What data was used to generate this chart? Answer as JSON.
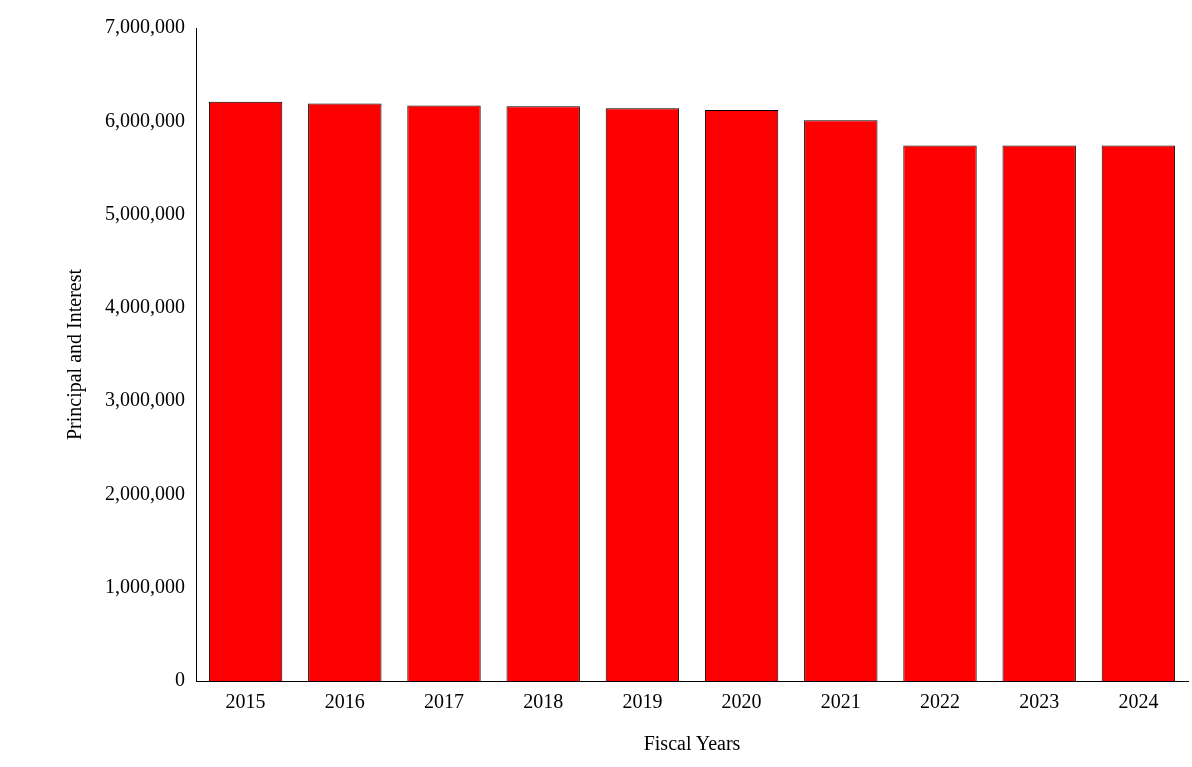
{
  "chart_data": {
    "type": "bar",
    "xlabel": "Fiscal Years",
    "ylabel": "Principal and Interest",
    "categories": [
      "2015",
      "2016",
      "2017",
      "2018",
      "2019",
      "2020",
      "2021",
      "2022",
      "2023",
      "2024"
    ],
    "values": [
      6210000,
      6190000,
      6170000,
      6160000,
      6140000,
      6120000,
      6010000,
      5740000,
      5740000,
      5740000
    ],
    "color": "#ff0000",
    "ylim": [
      0,
      7000000
    ],
    "yticks": [
      {
        "value": 0,
        "label": "0"
      },
      {
        "value": 1000000,
        "label": "1,000,000"
      },
      {
        "value": 2000000,
        "label": "2,000,000"
      },
      {
        "value": 3000000,
        "label": "3,000,000"
      },
      {
        "value": 4000000,
        "label": "4,000,000"
      },
      {
        "value": 5000000,
        "label": "5,000,000"
      },
      {
        "value": 6000000,
        "label": "6,000,000"
      },
      {
        "value": 7000000,
        "label": "7,000,000"
      }
    ],
    "grid": false,
    "legend": false
  }
}
